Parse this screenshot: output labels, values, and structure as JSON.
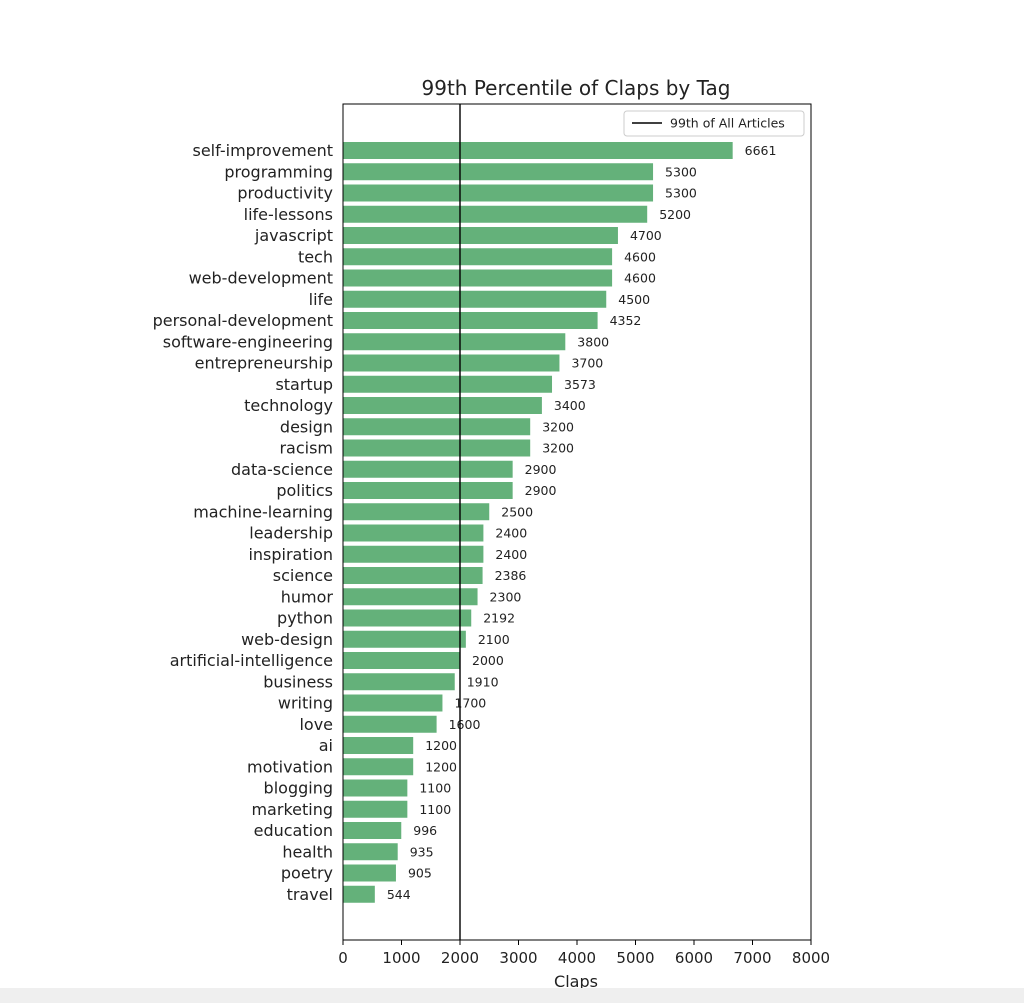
{
  "chart_data": {
    "type": "bar",
    "orientation": "horizontal",
    "title": "99th Percentile of Claps by Tag",
    "xlabel": "Claps",
    "ylabel": "",
    "xlim": [
      0,
      8000
    ],
    "xticks": [
      0,
      1000,
      2000,
      3000,
      4000,
      5000,
      6000,
      7000,
      8000
    ],
    "grid": false,
    "legend_position": "top-right",
    "bar_color": "#64b17a",
    "reference_line": {
      "label": "99th of All Articles",
      "value": 2000,
      "color": "#000000"
    },
    "categories": [
      "self-improvement",
      "programming",
      "productivity",
      "life-lessons",
      "javascript",
      "tech",
      "web-development",
      "life",
      "personal-development",
      "software-engineering",
      "entrepreneurship",
      "startup",
      "technology",
      "design",
      "racism",
      "data-science",
      "politics",
      "machine-learning",
      "leadership",
      "inspiration",
      "science",
      "humor",
      "python",
      "web-design",
      "artificial-intelligence",
      "business",
      "writing",
      "love",
      "ai",
      "motivation",
      "blogging",
      "marketing",
      "education",
      "health",
      "poetry",
      "travel"
    ],
    "values": [
      6661,
      5300,
      5300,
      5200,
      4700,
      4600,
      4600,
      4500,
      4352,
      3800,
      3700,
      3573,
      3400,
      3200,
      3200,
      2900,
      2900,
      2500,
      2400,
      2400,
      2386,
      2300,
      2192,
      2100,
      2000,
      1910,
      1700,
      1600,
      1200,
      1200,
      1100,
      1100,
      996,
      935,
      905,
      544
    ]
  }
}
